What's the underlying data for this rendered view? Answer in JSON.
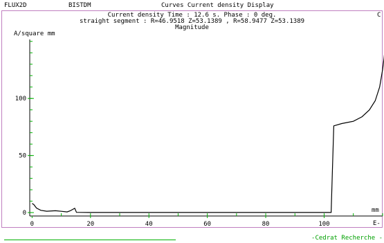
{
  "header": {
    "app_name": "FLUX2D",
    "doc_name": "BISTDM",
    "window_title": "Curves Current density Display"
  },
  "chart_data": {
    "type": "line",
    "title_lines": [
      "Current density  Time : 12.6 s. Phase : 0 deg.",
      "straight segment : R=46.9518 Z=53.1389 , R=58.9477 Z=53.1389",
      "Magnitude"
    ],
    "ylabel": "A/square mm",
    "xlabel": "mm",
    "xlabel_suffix": "E-",
    "xlim": [
      -0.8,
      120.5
    ],
    "ylim": [
      -3,
      162
    ],
    "x_ticks": [
      0,
      20,
      40,
      60,
      80,
      100
    ],
    "y_ticks": [
      0,
      50,
      100
    ],
    "grid": false,
    "series": [
      {
        "color": "#000000",
        "points": [
          [
            0,
            8
          ],
          [
            0.6,
            7
          ],
          [
            1.5,
            4
          ],
          [
            3,
            2
          ],
          [
            5,
            1.2
          ],
          [
            8,
            1.6
          ],
          [
            10,
            1.1
          ],
          [
            12,
            0.6
          ],
          [
            13,
            1.5
          ],
          [
            14.6,
            3.8
          ],
          [
            15.2,
            0.2
          ],
          [
            20,
            0.1
          ],
          [
            40,
            0.1
          ],
          [
            60,
            0.1
          ],
          [
            80,
            0.1
          ],
          [
            102.4,
            0.1
          ],
          [
            103.3,
            76
          ],
          [
            106,
            78
          ],
          [
            110,
            80
          ],
          [
            113,
            84
          ],
          [
            115.5,
            90
          ],
          [
            117.5,
            98
          ],
          [
            119,
            110
          ],
          [
            120,
            125
          ],
          [
            120.5,
            135
          ],
          [
            121,
            148
          ],
          [
            121.4,
            155
          ]
        ]
      }
    ]
  },
  "footer": {
    "credit": "-Cedrat Recherche -",
    "corner_mark": "C"
  },
  "colors": {
    "frame": "#c07ec0",
    "axis_tick": "#00b000",
    "footer_text": "#00a000"
  }
}
